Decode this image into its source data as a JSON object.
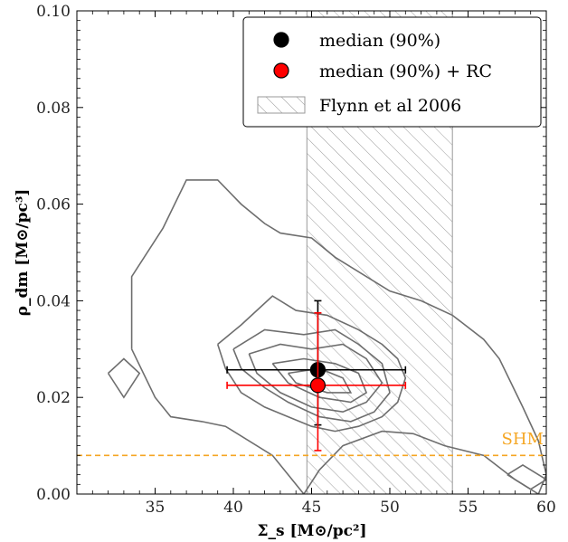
{
  "chart_data": {
    "type": "scatter",
    "xlabel": "Σ_s [M⊙/pc²]",
    "ylabel": "ρ_dm [M⊙/pc³]",
    "xlim": [
      30,
      60
    ],
    "ylim": [
      0.0,
      0.1
    ],
    "x_ticks": [
      "35",
      "40",
      "45",
      "50",
      "55",
      "60"
    ],
    "y_ticks": [
      "0.00",
      "0.02",
      "0.04",
      "0.06",
      "0.08",
      "0.10"
    ],
    "grid": false,
    "legend_position": "top-right",
    "legend": [
      {
        "label": "median (90%)",
        "kind": "marker",
        "color": "#000000"
      },
      {
        "label": "median (90%) + RC",
        "kind": "marker",
        "color": "#ff0000"
      },
      {
        "label": "Flynn et al 2006",
        "kind": "hatch",
        "color": "#aaaaaa"
      }
    ],
    "band": {
      "name": "Flynn et al 2006",
      "x_range": [
        44.7,
        54.0
      ]
    },
    "hline": {
      "name": "SHM",
      "y": 0.008,
      "color": "#f5a623"
    },
    "annotation": "SHM",
    "series": [
      {
        "name": "median (90%)",
        "color": "#000000",
        "x": 45.4,
        "y": 0.0257,
        "xerr": [
          39.6,
          51.0
        ],
        "yerr": [
          0.0143,
          0.04
        ]
      },
      {
        "name": "median (90%) + RC",
        "color": "#ff0000",
        "x": 45.4,
        "y": 0.0225,
        "xerr": [
          39.6,
          51.0
        ],
        "yerr": [
          0.009,
          0.0375
        ]
      }
    ],
    "contours": [
      [
        [
          33.5,
          0.03
        ],
        [
          33.5,
          0.045
        ],
        [
          35.5,
          0.055
        ],
        [
          37.0,
          0.065
        ],
        [
          39.0,
          0.065
        ],
        [
          40.5,
          0.06
        ],
        [
          42.0,
          0.056
        ],
        [
          43.0,
          0.054
        ],
        [
          45.0,
          0.053
        ],
        [
          46.5,
          0.049
        ],
        [
          48.5,
          0.045
        ],
        [
          50.0,
          0.042
        ],
        [
          52.0,
          0.04
        ],
        [
          54.0,
          0.037
        ],
        [
          56.0,
          0.032
        ],
        [
          57.0,
          0.028
        ],
        [
          58.5,
          0.018
        ],
        [
          59.5,
          0.011
        ],
        [
          60.0,
          0.004
        ],
        [
          59.5,
          0.0
        ],
        [
          58.0,
          0.003
        ],
        [
          56.0,
          0.008
        ],
        [
          53.5,
          0.01
        ],
        [
          51.5,
          0.0125
        ],
        [
          49.5,
          0.013
        ],
        [
          47.0,
          0.01
        ],
        [
          45.5,
          0.005
        ],
        [
          44.5,
          0.0
        ],
        [
          42.5,
          0.008
        ],
        [
          39.5,
          0.014
        ],
        [
          38.0,
          0.015
        ],
        [
          36.0,
          0.016
        ],
        [
          35.0,
          0.02
        ],
        [
          33.5,
          0.03
        ]
      ],
      [
        [
          39.0,
          0.031
        ],
        [
          40.5,
          0.035
        ],
        [
          42.5,
          0.041
        ],
        [
          44.0,
          0.038
        ],
        [
          46.0,
          0.037
        ],
        [
          48.0,
          0.034
        ],
        [
          49.5,
          0.031
        ],
        [
          50.5,
          0.028
        ],
        [
          51.0,
          0.024
        ],
        [
          50.5,
          0.019
        ],
        [
          49.5,
          0.016
        ],
        [
          48.0,
          0.014
        ],
        [
          46.5,
          0.013
        ],
        [
          45.0,
          0.014
        ],
        [
          43.5,
          0.016
        ],
        [
          42.0,
          0.018
        ],
        [
          40.5,
          0.021
        ],
        [
          39.5,
          0.026
        ],
        [
          39.0,
          0.031
        ]
      ],
      [
        [
          40.0,
          0.03
        ],
        [
          42.0,
          0.034
        ],
        [
          44.5,
          0.033
        ],
        [
          46.5,
          0.034
        ],
        [
          48.0,
          0.031
        ],
        [
          49.5,
          0.027
        ],
        [
          50.0,
          0.021
        ],
        [
          49.0,
          0.017
        ],
        [
          47.5,
          0.015
        ],
        [
          45.5,
          0.016
        ],
        [
          43.5,
          0.019
        ],
        [
          42.0,
          0.022
        ],
        [
          40.5,
          0.026
        ],
        [
          40.0,
          0.03
        ]
      ],
      [
        [
          41.0,
          0.029
        ],
        [
          43.0,
          0.031
        ],
        [
          45.0,
          0.03
        ],
        [
          47.0,
          0.031
        ],
        [
          48.5,
          0.028
        ],
        [
          49.5,
          0.023
        ],
        [
          48.5,
          0.019
        ],
        [
          47.0,
          0.017
        ],
        [
          45.0,
          0.018
        ],
        [
          43.0,
          0.021
        ],
        [
          41.5,
          0.025
        ],
        [
          41.0,
          0.029
        ]
      ],
      [
        [
          42.5,
          0.027
        ],
        [
          44.5,
          0.028
        ],
        [
          46.5,
          0.027
        ],
        [
          48.0,
          0.025
        ],
        [
          48.5,
          0.021
        ],
        [
          47.5,
          0.019
        ],
        [
          45.5,
          0.02
        ],
        [
          43.5,
          0.023
        ],
        [
          42.5,
          0.027
        ]
      ],
      [
        [
          43.5,
          0.025
        ],
        [
          45.5,
          0.026
        ],
        [
          47.0,
          0.024
        ],
        [
          47.5,
          0.021
        ],
        [
          46.0,
          0.021
        ],
        [
          44.0,
          0.023
        ],
        [
          43.5,
          0.025
        ]
      ],
      [
        [
          32.0,
          0.025
        ],
        [
          33.0,
          0.028
        ],
        [
          34.0,
          0.025
        ],
        [
          33.0,
          0.02
        ],
        [
          32.0,
          0.025
        ]
      ],
      [
        [
          57.5,
          0.004
        ],
        [
          58.5,
          0.006
        ],
        [
          60.0,
          0.003
        ],
        [
          59.0,
          0.001
        ],
        [
          57.5,
          0.004
        ]
      ]
    ]
  }
}
